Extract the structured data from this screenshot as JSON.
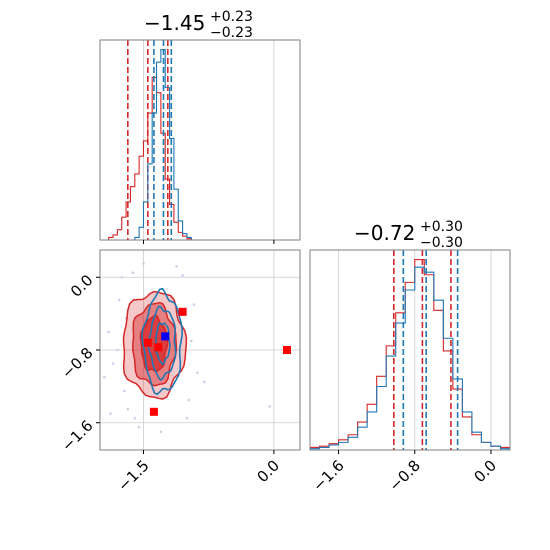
{
  "chart_data": [
    {
      "type": "histogram",
      "panel": "top-left",
      "title_value": "−1.45",
      "title_sup": "+0.23",
      "title_sub": "−0.23",
      "xlim": [
        -2.0,
        0.3
      ],
      "xticks": [
        -1.5,
        0.0
      ],
      "series": [
        {
          "color": "#d62728",
          "bin_edges": [
            -1.9,
            -1.85,
            -1.8,
            -1.75,
            -1.7,
            -1.65,
            -1.6,
            -1.55,
            -1.5,
            -1.45,
            -1.4,
            -1.35,
            -1.3,
            -1.25,
            -1.2,
            -1.15,
            -1.1,
            -1.05,
            -1.0,
            -0.95
          ],
          "counts": [
            2,
            4,
            8,
            18,
            30,
            42,
            52,
            66,
            78,
            100,
            128,
            116,
            84,
            48,
            28,
            14,
            6,
            3,
            1
          ],
          "quantiles": [
            -1.68,
            -1.45,
            -1.22
          ]
        },
        {
          "color": "#1f77b4",
          "bin_edges": [
            -1.6,
            -1.55,
            -1.5,
            -1.45,
            -1.4,
            -1.35,
            -1.3,
            -1.25,
            -1.2,
            -1.15,
            -1.1,
            -1.05,
            -1.0,
            -0.95
          ],
          "counts": [
            2,
            10,
            30,
            60,
            100,
            140,
            150,
            120,
            80,
            40,
            15,
            5,
            2
          ],
          "quantiles": [
            -1.38,
            -1.27,
            -1.18
          ]
        }
      ]
    },
    {
      "type": "histogram",
      "panel": "bottom-right",
      "title_value": "−0.72",
      "title_sup": "+0.30",
      "title_sub": "−0.30",
      "xlim": [
        -1.9,
        0.2
      ],
      "xticks": [
        -1.6,
        -0.8,
        0.0
      ],
      "series": [
        {
          "color": "#d62728",
          "bin_edges": [
            -1.9,
            -1.8,
            -1.7,
            -1.6,
            -1.5,
            -1.4,
            -1.3,
            -1.2,
            -1.1,
            -1.0,
            -0.9,
            -0.8,
            -0.7,
            -0.6,
            -0.5,
            -0.4,
            -0.3,
            -0.2,
            -0.1,
            0.0,
            0.1,
            0.2
          ],
          "counts": [
            2,
            3,
            5,
            8,
            12,
            22,
            36,
            58,
            82,
            108,
            132,
            150,
            138,
            110,
            78,
            48,
            26,
            12,
            6,
            3,
            2
          ],
          "quantiles": [
            -1.02,
            -0.72,
            -0.42
          ]
        },
        {
          "color": "#1f77b4",
          "bin_edges": [
            -1.9,
            -1.8,
            -1.7,
            -1.6,
            -1.5,
            -1.4,
            -1.3,
            -1.2,
            -1.1,
            -1.0,
            -0.9,
            -0.8,
            -0.7,
            -0.6,
            -0.5,
            -0.4,
            -0.3,
            -0.2,
            -0.1,
            0.0,
            0.1,
            0.2
          ],
          "counts": [
            1,
            2,
            4,
            6,
            10,
            18,
            30,
            50,
            74,
            100,
            126,
            144,
            140,
            118,
            88,
            56,
            30,
            14,
            6,
            3,
            1
          ],
          "quantiles": [
            -0.92,
            -0.68,
            -0.35
          ]
        }
      ]
    },
    {
      "type": "contour",
      "panel": "bottom-left",
      "xlim": [
        -2.0,
        0.3
      ],
      "ylim": [
        -1.9,
        0.3
      ],
      "xticks": [
        -1.5,
        0.0
      ],
      "yticks": [
        0.0,
        -0.8,
        -1.6
      ],
      "xtick_labels": [
        "−1.5",
        "0.0"
      ],
      "ytick_labels": [
        "0.0",
        "−0.8",
        "−1.6"
      ],
      "red_contours": {
        "color": "#d62728",
        "center": [
          -1.38,
          -0.74
        ],
        "levels": [
          {
            "rx": 0.36,
            "ry": 0.58,
            "fill_opacity": 0.25
          },
          {
            "rx": 0.25,
            "ry": 0.45,
            "fill_opacity": 0.45
          },
          {
            "rx": 0.15,
            "ry": 0.3,
            "fill_opacity": 0.75
          }
        ]
      },
      "blue_contours": {
        "color": "#1f77b4",
        "center": [
          -1.28,
          -0.72
        ],
        "levels": [
          {
            "rx": 0.22,
            "ry": 0.55
          },
          {
            "rx": 0.15,
            "ry": 0.38
          },
          {
            "rx": 0.08,
            "ry": 0.22
          }
        ]
      },
      "markers": [
        {
          "x": -1.05,
          "y": -0.38,
          "color": "#ff0000"
        },
        {
          "x": -1.45,
          "y": -0.72,
          "color": "#ff0000"
        },
        {
          "x": -1.33,
          "y": -0.77,
          "color": "#ff0000"
        },
        {
          "x": -1.38,
          "y": -1.48,
          "color": "#ff0000"
        },
        {
          "x": 0.15,
          "y": -0.8,
          "color": "#ff0000"
        },
        {
          "x": -1.25,
          "y": -0.65,
          "color": "#0000ff"
        }
      ],
      "scatter_points": [
        [
          -1.9,
          -0.6
        ],
        [
          -1.85,
          -0.95
        ],
        [
          -1.78,
          -0.25
        ],
        [
          -1.72,
          -1.25
        ],
        [
          -1.95,
          -1.1
        ],
        [
          -1.62,
          0.05
        ],
        [
          -1.55,
          -1.65
        ],
        [
          -1.05,
          0.02
        ],
        [
          -0.92,
          -0.3
        ],
        [
          -0.88,
          -1.05
        ],
        [
          -0.98,
          -1.35
        ],
        [
          -1.68,
          -1.45
        ],
        [
          -1.12,
          0.12
        ],
        [
          -1.8,
          -0.8
        ],
        [
          -0.95,
          -0.7
        ],
        [
          -1.5,
          0.15
        ],
        [
          -1.3,
          -1.7
        ],
        [
          -1.7,
          -0.45
        ],
        [
          -0.8,
          -1.15
        ],
        [
          -1.88,
          -1.5
        ],
        [
          -0.05,
          -1.42
        ],
        [
          -1.0,
          -1.55
        ],
        [
          -1.6,
          -1.55
        ],
        [
          -1.75,
          0.0
        ]
      ]
    }
  ]
}
